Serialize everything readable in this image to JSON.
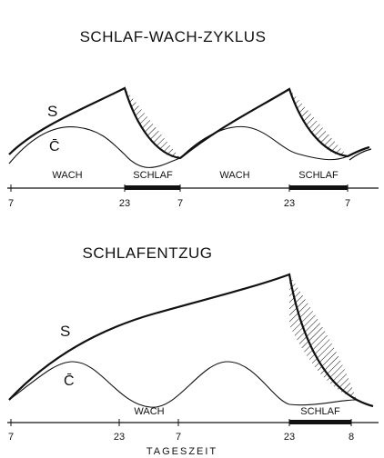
{
  "figure": {
    "top": {
      "title": "SCHLAF-WACH-ZYKLUS",
      "label_s": "S",
      "label_c": "C̄",
      "phase_labels": [
        "WACH",
        "SCHLAF",
        "WACH",
        "SCHLAF"
      ],
      "ticks": [
        "7",
        "23",
        "7",
        "23",
        "7"
      ]
    },
    "bottom": {
      "title": "SCHLAFENTZUG",
      "label_s": "S",
      "label_c": "C̄",
      "phase_labels": [
        "WACH",
        "SCHLAF"
      ],
      "ticks": [
        "7",
        "23",
        "7",
        "23",
        "8"
      ]
    },
    "xaxis_label": "TAGESZEIT"
  },
  "colors": {
    "ink": "#111111",
    "background": "#ffffff"
  }
}
